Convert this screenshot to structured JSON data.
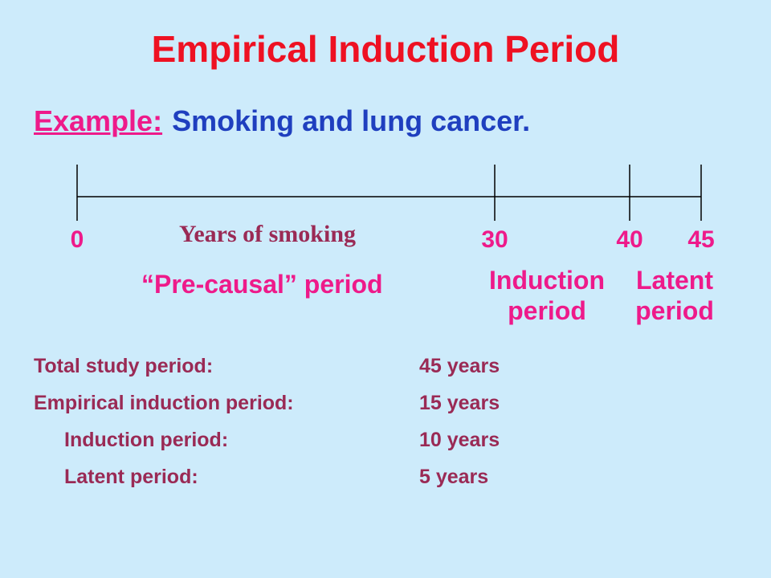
{
  "title": "Empirical Induction Period",
  "example": {
    "label": "Example:",
    "text": "Smoking and lung cancer."
  },
  "timeline": {
    "ticks": [
      {
        "value": 0,
        "label": "0"
      },
      {
        "value": 30,
        "label": "30"
      },
      {
        "value": 40,
        "label": "40"
      },
      {
        "value": 45,
        "label": "45"
      }
    ],
    "years_of_smoking": "Years of smoking",
    "pre_causal": "“Pre-causal” period",
    "induction": {
      "line1": "Induction",
      "line2": "period"
    },
    "latent": {
      "line1": "Latent",
      "line2": "period"
    }
  },
  "summary": {
    "rows": [
      {
        "key": "Total study period:",
        "value": "45 years"
      },
      {
        "key": "Empirical induction period:",
        "value": "15 years"
      },
      {
        "key": "Induction period:",
        "value": "10 years"
      },
      {
        "key": "Latent period:",
        "value": "5 years"
      }
    ]
  },
  "colors": {
    "title": "#ee1122",
    "accent": "#ee1a8a",
    "blue": "#1f3fbf",
    "maroon": "#9a2a55",
    "background": "#cdebfb"
  }
}
